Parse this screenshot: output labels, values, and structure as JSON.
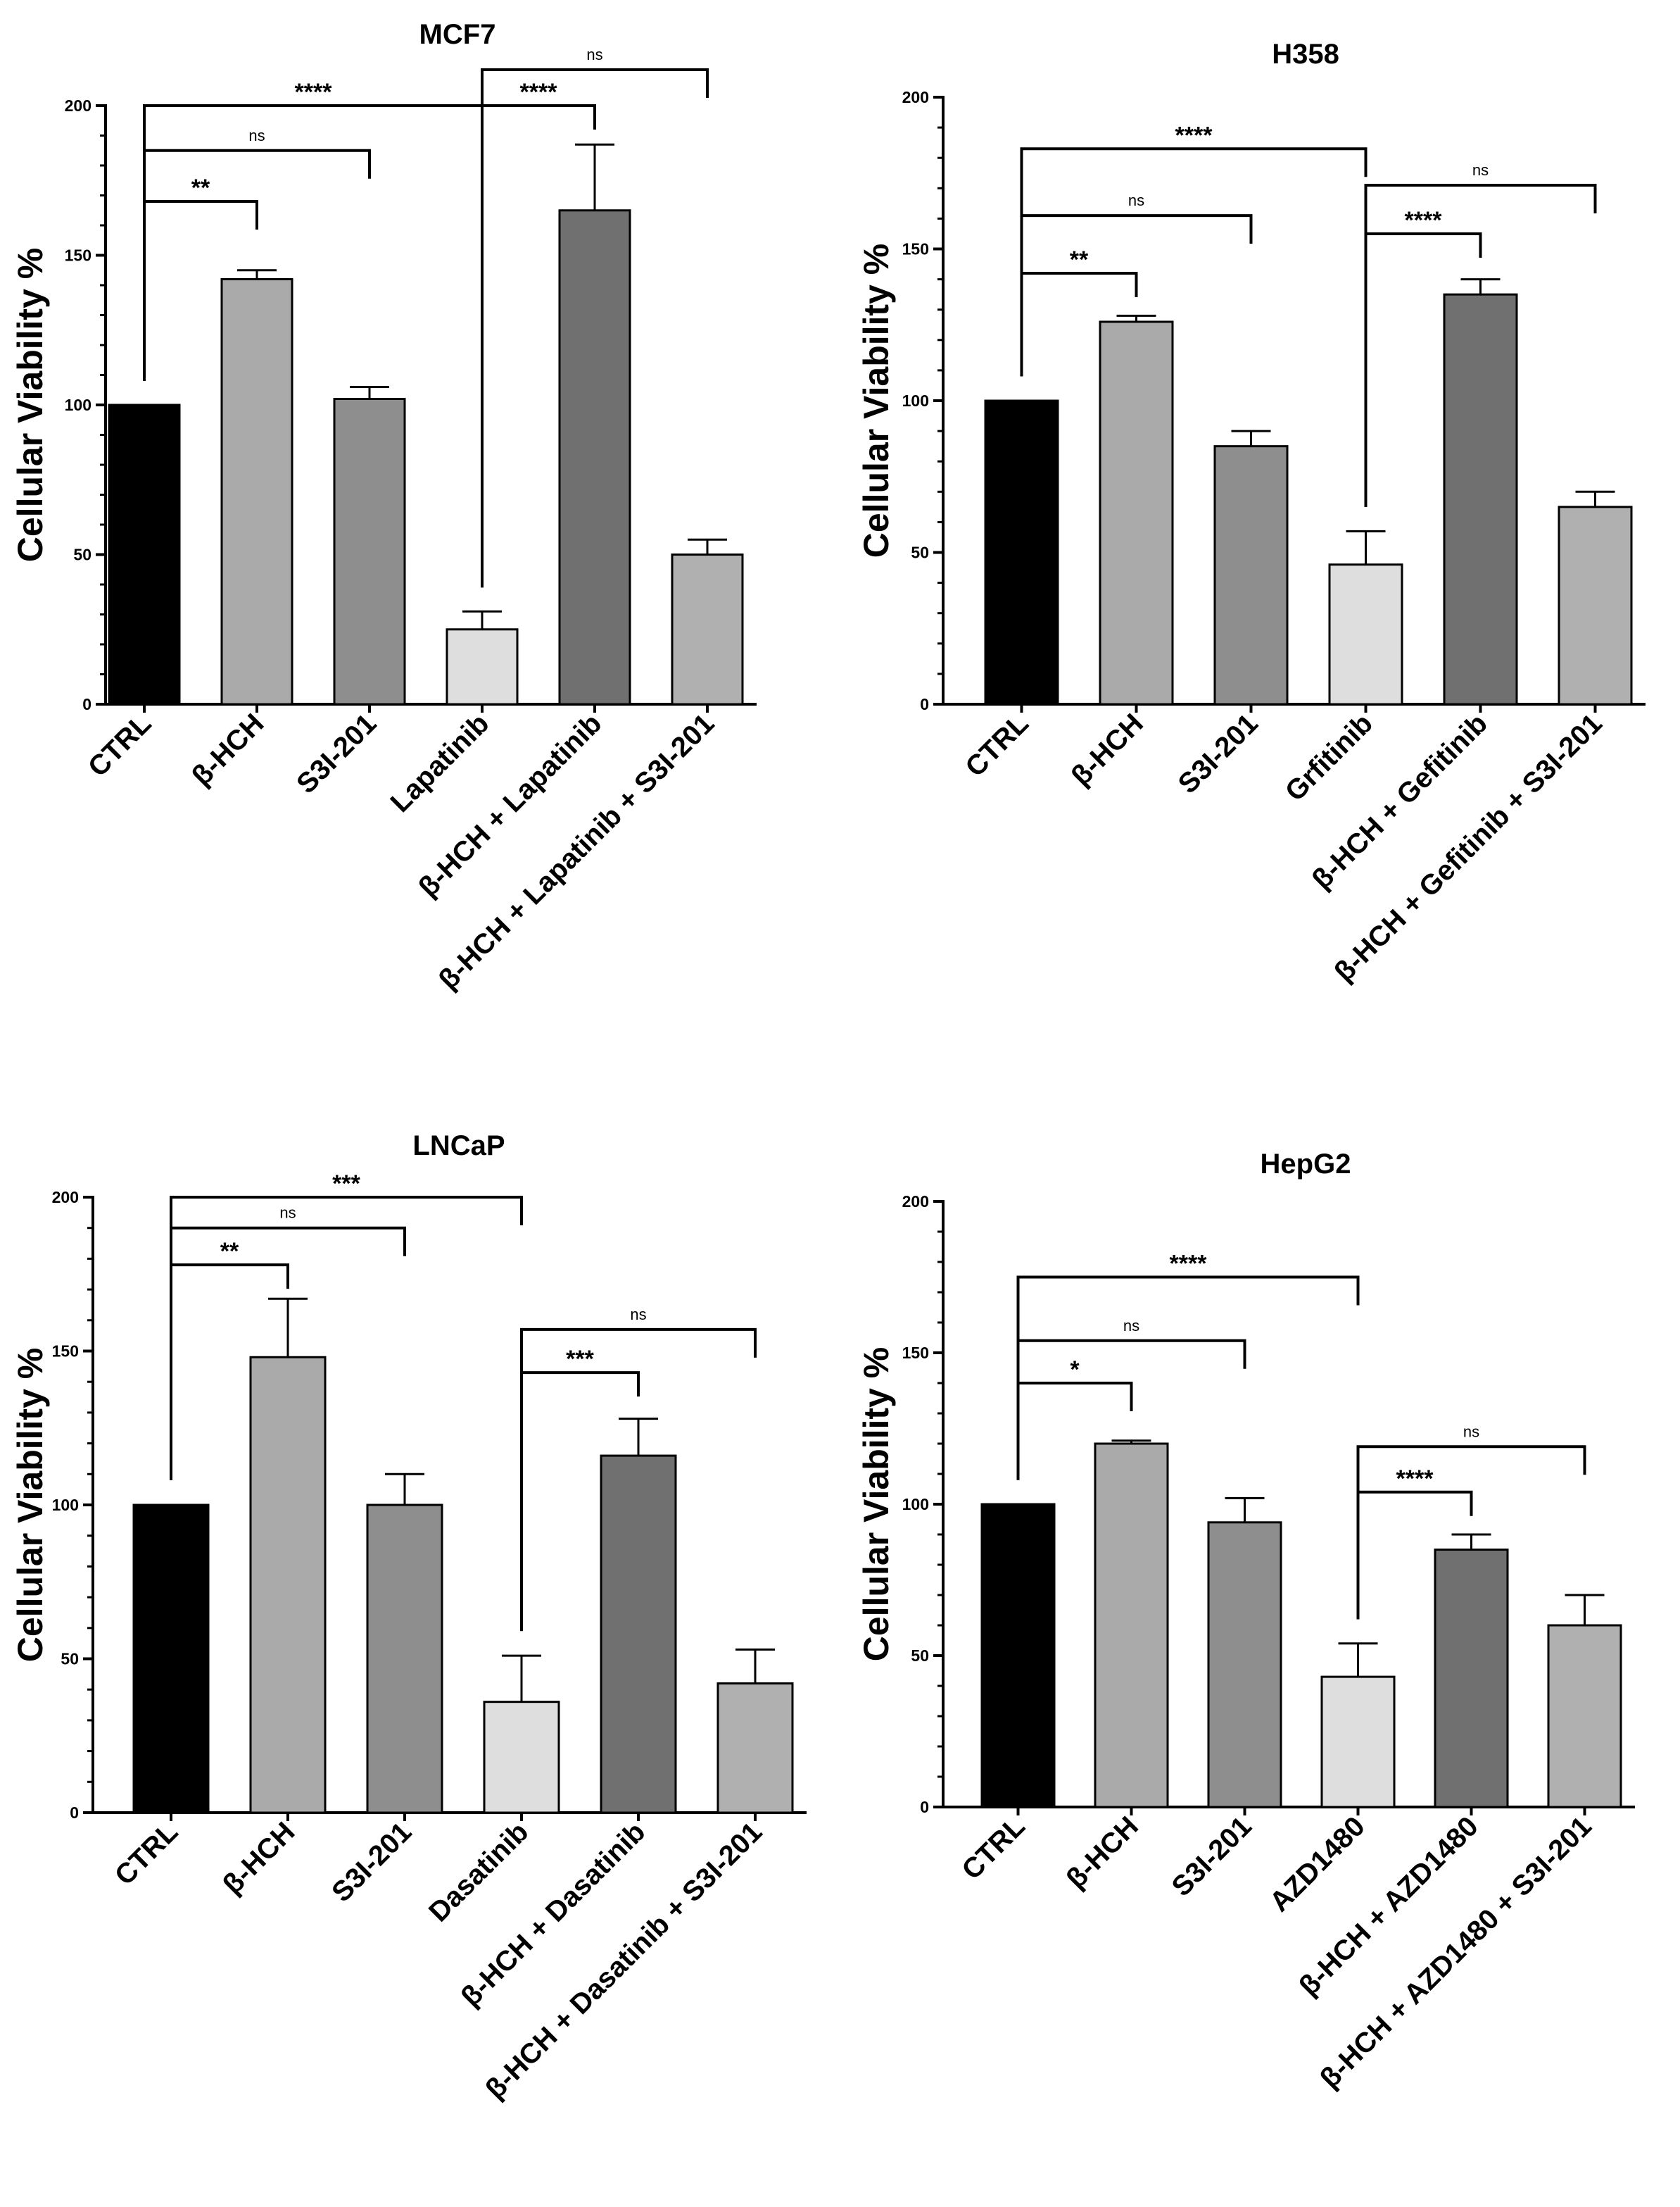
{
  "chart_data": [
    {
      "type": "bar",
      "title": "MCF7",
      "ylabel": "Cellular Viability %",
      "ylim": [
        0,
        200
      ],
      "yticks": [
        0,
        50,
        100,
        150,
        200
      ],
      "categories": [
        "CTRL",
        "β-HCH",
        "S3I-201",
        "Lapatinib",
        "β-HCH + Lapatinib",
        "β-HCH + Lapatinib + S3I-201"
      ],
      "values": [
        100,
        142,
        102,
        25,
        165,
        50
      ],
      "errors": [
        0,
        3,
        4,
        6,
        22,
        5
      ],
      "colors": [
        "#000000",
        "#aaaaaa",
        "#8e8e8e",
        "#dedede",
        "#707070",
        "#b0b0b0"
      ],
      "comparisons": [
        {
          "from": 0,
          "to": 3,
          "label": "****",
          "y": 200
        },
        {
          "from": 0,
          "to": 2,
          "label": "ns",
          "y": 185
        },
        {
          "from": 0,
          "to": 1,
          "label": "**",
          "y": 168
        },
        {
          "from": 3,
          "to": 5,
          "label": "ns",
          "y": 212
        },
        {
          "from": 3,
          "to": 4,
          "label": "****",
          "y": 200
        }
      ]
    },
    {
      "type": "bar",
      "title": "H358",
      "ylabel": "Cellular Viability %",
      "ylim": [
        0,
        200
      ],
      "yticks": [
        0,
        50,
        100,
        150,
        200
      ],
      "categories": [
        "CTRL",
        "β-HCH",
        "S3I-201",
        "Grfitinib",
        "β-HCH + Gefitinib",
        "β-HCH + Gefitinib + S3I-201"
      ],
      "values": [
        100,
        126,
        85,
        46,
        135,
        65
      ],
      "errors": [
        0,
        2,
        5,
        11,
        5,
        5
      ],
      "colors": [
        "#000000",
        "#aaaaaa",
        "#8e8e8e",
        "#dedede",
        "#707070",
        "#b0b0b0"
      ],
      "comparisons": [
        {
          "from": 0,
          "to": 3,
          "label": "****",
          "y": 183
        },
        {
          "from": 0,
          "to": 2,
          "label": "ns",
          "y": 161
        },
        {
          "from": 0,
          "to": 1,
          "label": "**",
          "y": 142
        },
        {
          "from": 3,
          "to": 5,
          "label": "ns",
          "y": 171
        },
        {
          "from": 3,
          "to": 4,
          "label": "****",
          "y": 155
        }
      ]
    },
    {
      "type": "bar",
      "title": "LNCaP",
      "ylabel": "Cellular Viability %",
      "ylim": [
        0,
        200
      ],
      "yticks": [
        0,
        50,
        100,
        150,
        200
      ],
      "categories": [
        "CTRL",
        "β-HCH",
        "S3I-201",
        "Dasatinib",
        "β-HCH + Dasatinib",
        "β-HCH + Dasatinib + S3I-201"
      ],
      "values": [
        100,
        148,
        100,
        36,
        116,
        42
      ],
      "errors": [
        0,
        19,
        10,
        15,
        12,
        11
      ],
      "colors": [
        "#000000",
        "#aaaaaa",
        "#8e8e8e",
        "#dedede",
        "#707070",
        "#b0b0b0"
      ],
      "comparisons": [
        {
          "from": 0,
          "to": 3,
          "label": "***",
          "y": 200
        },
        {
          "from": 0,
          "to": 2,
          "label": "ns",
          "y": 190
        },
        {
          "from": 0,
          "to": 1,
          "label": "**",
          "y": 178
        },
        {
          "from": 3,
          "to": 5,
          "label": "ns",
          "y": 157
        },
        {
          "from": 3,
          "to": 4,
          "label": "***",
          "y": 143
        }
      ]
    },
    {
      "type": "bar",
      "title": "HepG2",
      "ylabel": "Cellular Viability %",
      "ylim": [
        0,
        200
      ],
      "yticks": [
        0,
        50,
        100,
        150,
        200
      ],
      "categories": [
        "CTRL",
        "β-HCH",
        "S3I-201",
        "AZD1480",
        "β-HCH + AZD1480",
        "β-HCH + AZD1480 + S3I-201"
      ],
      "values": [
        100,
        120,
        94,
        43,
        85,
        60
      ],
      "errors": [
        0,
        1,
        8,
        11,
        5,
        10
      ],
      "colors": [
        "#000000",
        "#aaaaaa",
        "#8e8e8e",
        "#dedede",
        "#707070",
        "#b0b0b0"
      ],
      "comparisons": [
        {
          "from": 0,
          "to": 3,
          "label": "****",
          "y": 175
        },
        {
          "from": 0,
          "to": 2,
          "label": "ns",
          "y": 154
        },
        {
          "from": 0,
          "to": 1,
          "label": "*",
          "y": 140
        },
        {
          "from": 3,
          "to": 5,
          "label": "ns",
          "y": 119
        },
        {
          "from": 3,
          "to": 4,
          "label": "****",
          "y": 104
        }
      ]
    }
  ]
}
